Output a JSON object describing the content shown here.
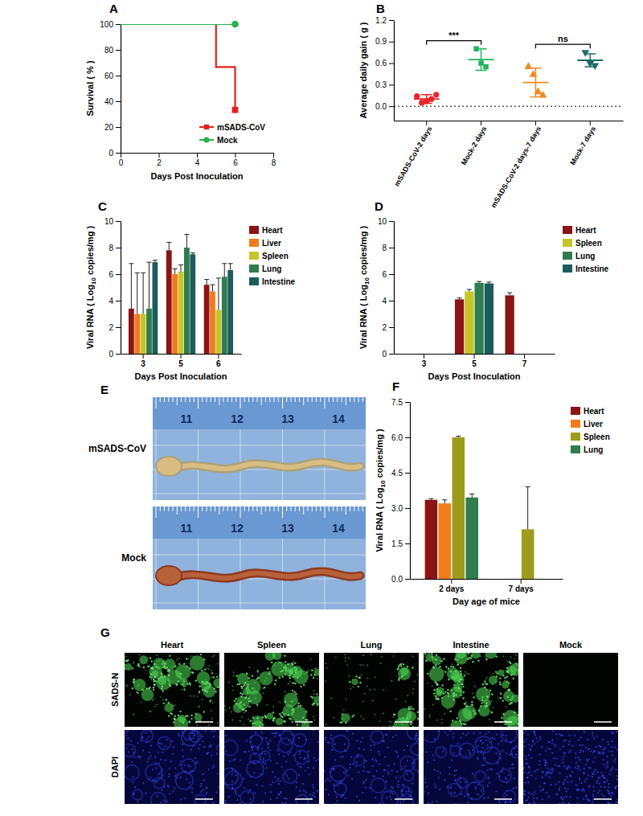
{
  "chart_data": [
    {
      "panel_label": "A",
      "type": "line",
      "xlabel": "Days Post Inoculation",
      "ylabel": "Survival ( % )",
      "xlim": [
        0,
        8
      ],
      "xticks": [
        0,
        2,
        4,
        6,
        8
      ],
      "ylim": [
        0,
        100
      ],
      "yticks": [
        0,
        20,
        40,
        60,
        80,
        100
      ],
      "line_style": "step",
      "legend": "lower right",
      "series": [
        {
          "name": "mSADS-CoV",
          "color": "#e3201b",
          "marker": "square",
          "x": [
            0,
            5,
            6
          ],
          "values": [
            100,
            66.7,
            33.3
          ]
        },
        {
          "name": "Mock",
          "color": "#27b24a",
          "marker": "circle",
          "x": [
            0,
            6
          ],
          "values": [
            100,
            100
          ]
        }
      ]
    },
    {
      "panel_label": "B",
      "type": "dot",
      "ylabel": "Average daily gain ( g )",
      "categories": [
        "mSADS-CoV-2 days",
        "Mock-2 days",
        "mSADS-CoV-2 days-7 days",
        "Mock-7 days"
      ],
      "ylim": [
        -0.2,
        1.2
      ],
      "yticks": [
        {
          "value": 0,
          "label": "0.0"
        },
        {
          "value": 0.3,
          "label": "0.3"
        },
        {
          "value": 0.6,
          "label": "0.6"
        },
        {
          "value": 0.9,
          "label": "0.9"
        },
        {
          "value": 1.2,
          "label": "1.2"
        }
      ],
      "reference_y": 0,
      "groups": [
        {
          "color": "#e8262b",
          "marker": "circle",
          "values": [
            0.14,
            0.05,
            0.07,
            0.1,
            0.16
          ],
          "mean": 0.1,
          "error": 0.06
        },
        {
          "color": "#1fb45a",
          "marker": "square",
          "values": [
            0.8,
            0.6,
            0.55
          ],
          "mean": 0.65,
          "error": 0.15
        },
        {
          "color": "#f5891f",
          "marker": "triangle",
          "values": [
            0.55,
            0.44,
            0.2,
            0.15
          ],
          "mean": 0.33,
          "error": 0.2
        },
        {
          "color": "#1e6b66",
          "marker": "triangle-down",
          "values": [
            0.75,
            0.6,
            0.57
          ],
          "mean": 0.64,
          "error": 0.09
        }
      ],
      "annotations": [
        {
          "text": "***",
          "from": 0,
          "to": 1
        },
        {
          "text": "ns",
          "from": 2,
          "to": 3
        }
      ]
    },
    {
      "panel_label": "C",
      "type": "bar",
      "xlabel": "Days Post Inoculation",
      "ylabel": {
        "text": "Viral RNA ( Log",
        "subscript": "10",
        "text_after": " copies/mg )"
      },
      "categories": [
        "3",
        "5",
        "6"
      ],
      "ylim": [
        0,
        10
      ],
      "yticks": [
        0,
        2,
        4,
        6,
        8,
        10
      ],
      "legend": "right",
      "series": [
        {
          "name": "Heart",
          "color": "#8b1414",
          "values": [
            3.4,
            7.8,
            5.2
          ],
          "errors": [
            3.4,
            0.6,
            0.4
          ]
        },
        {
          "name": "Liver",
          "color": "#f07c1e",
          "values": [
            3.0,
            6.0,
            4.7
          ],
          "errors": [
            3.1,
            0.4,
            0.5
          ]
        },
        {
          "name": "Spleen",
          "color": "#c5c52a",
          "values": [
            3.0,
            6.2,
            3.3
          ],
          "errors": [
            3.1,
            0.5,
            2.4
          ]
        },
        {
          "name": "Lung",
          "color": "#2f7d4f",
          "values": [
            3.4,
            8.0,
            5.8
          ],
          "errors": [
            3.5,
            1.0,
            1.0
          ]
        },
        {
          "name": "Intestine",
          "color": "#1d5c5c",
          "values": [
            6.9,
            7.5,
            6.3
          ],
          "errors": [
            0.15,
            0.1,
            0.5
          ]
        }
      ]
    },
    {
      "panel_label": "D",
      "type": "bar",
      "xlabel": "Days Post Inoculation",
      "ylabel": {
        "text": "Viral RNA ( Log",
        "subscript": "10",
        "text_after": " copies/mg )"
      },
      "categories": [
        "3",
        "5",
        "7"
      ],
      "ylim": [
        0,
        10
      ],
      "yticks": [
        0,
        2,
        4,
        6,
        8,
        10
      ],
      "legend": "right",
      "series": [
        {
          "name": "Heart",
          "color": "#8b1414",
          "values": [
            0,
            4.1,
            4.4
          ],
          "errors": [
            0,
            0.1,
            0.2
          ]
        },
        {
          "name": "Spleen",
          "color": "#c5c52a",
          "values": [
            0,
            4.7,
            0
          ],
          "errors": [
            0,
            0.15,
            0
          ]
        },
        {
          "name": "Lung",
          "color": "#2f7d4f",
          "values": [
            0,
            5.35,
            0
          ],
          "errors": [
            0,
            0.1,
            0
          ]
        },
        {
          "name": "Intestine",
          "color": "#1d5c5c",
          "values": [
            0,
            5.3,
            0
          ],
          "errors": [
            0,
            0.1,
            0
          ]
        }
      ]
    },
    {
      "panel_label": "F",
      "type": "bar",
      "xlabel": "Day age of mice",
      "ylabel": {
        "text": "Viral RNA ( Log",
        "subscript": "10",
        "text_after": " copies/mg )"
      },
      "categories": [
        "2 days",
        "7 days"
      ],
      "ylim": [
        0,
        7.5
      ],
      "yticks": [
        {
          "value": 0,
          "label": "0.0"
        },
        {
          "value": 1.5,
          "label": "1.5"
        },
        {
          "value": 3,
          "label": "3.0"
        },
        {
          "value": 4.5,
          "label": "4.5"
        },
        {
          "value": 6,
          "label": "6.0"
        },
        {
          "value": 7.5,
          "label": "7.5"
        }
      ],
      "legend": "right",
      "series": [
        {
          "name": "Heart",
          "color": "#8b1414",
          "values": [
            3.35,
            0
          ],
          "errors": [
            0.05,
            0
          ]
        },
        {
          "name": "Liver",
          "color": "#f07c1e",
          "values": [
            3.2,
            0
          ],
          "errors": [
            0.15,
            0
          ]
        },
        {
          "name": "Spleen",
          "color": "#9c9c1c",
          "values": [
            6.0,
            2.1
          ],
          "errors": [
            0.05,
            1.8
          ]
        },
        {
          "name": "Lung",
          "color": "#2f7d4f",
          "values": [
            3.45,
            0
          ],
          "errors": [
            0.15,
            0
          ]
        }
      ]
    }
  ],
  "images": [
    {
      "panel_label": "E",
      "rows": [
        "mSADS-CoV",
        "Mock"
      ],
      "ruler_ticks": [
        11,
        12,
        13,
        14
      ]
    },
    {
      "panel_label": "G",
      "columns": [
        "Heart",
        "Spleen",
        "Lung",
        "Intestine",
        "Mock"
      ],
      "rows": [
        "SADS-N",
        "DAPI"
      ]
    }
  ]
}
